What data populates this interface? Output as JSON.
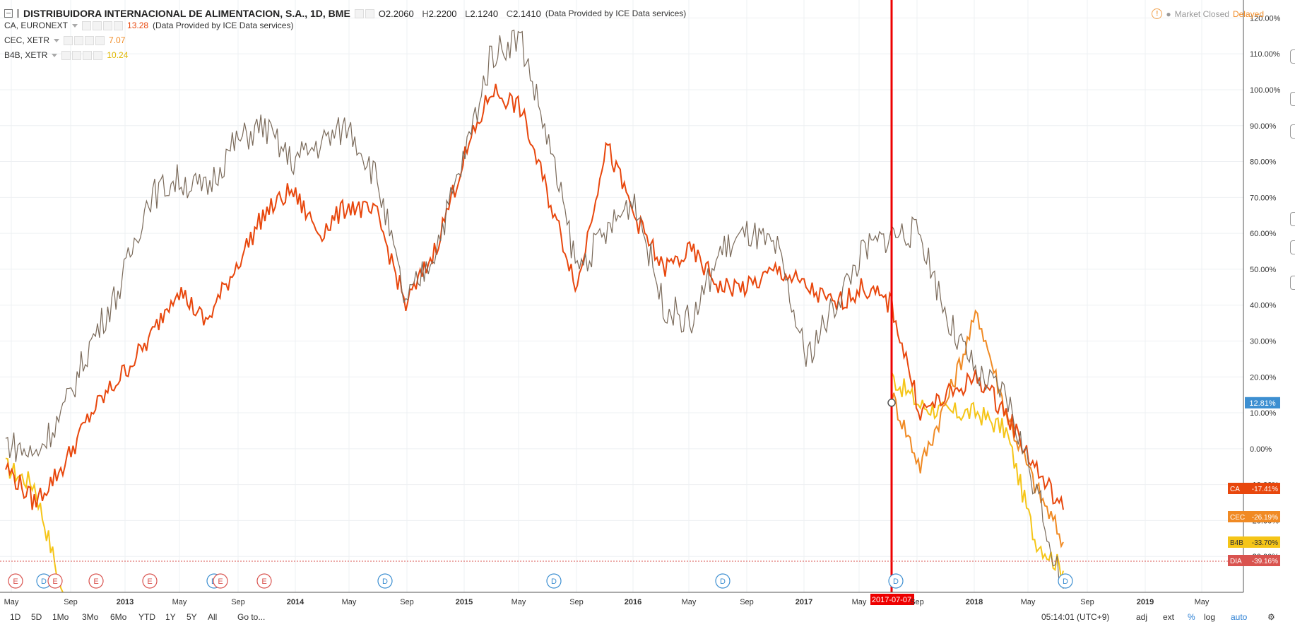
{
  "header": {
    "title": "DISTRIBUIDORA INTERNACIONAL DE ALIMENTACION, S.A., 1D, BME",
    "open_label": "O",
    "open": "2.2060",
    "high_label": "H",
    "high": "2.2200",
    "low_label": "L",
    "low": "2.1240",
    "close_label": "C",
    "close": "2.1410",
    "provider": "(Data Provided by ICE Data services)"
  },
  "compare_legend": [
    {
      "symbol": "CA, EURONEXT",
      "value": "13.28",
      "provider": "(Data Provided by ICE Data services)",
      "color": "#e8470d"
    },
    {
      "symbol": "CEC, XETR",
      "value": "7.07",
      "provider": "",
      "color": "#f08a24"
    },
    {
      "symbol": "B4B, XETR",
      "value": "10.24",
      "provider": "",
      "color": "#f5c518"
    }
  ],
  "status": {
    "market": "Market Closed",
    "delayed": "Delayed"
  },
  "crosshair": {
    "date": "2017-07-07",
    "value": "12.81%"
  },
  "axis_labels": {
    "y": [
      "120.00%",
      "110.00%",
      "100.00%",
      "90.00%",
      "80.00%",
      "70.00%",
      "60.00%",
      "50.00%",
      "40.00%",
      "30.00%",
      "20.00%",
      "10.00%",
      "0.00%",
      "-10.00%",
      "-20.00%",
      "-30.00%"
    ],
    "x": [
      "May",
      "Sep",
      "2013",
      "May",
      "Sep",
      "2014",
      "May",
      "Sep",
      "2015",
      "May",
      "Sep",
      "2016",
      "May",
      "Sep",
      "2017",
      "May",
      "Sep",
      "2018",
      "May",
      "Sep",
      "2019",
      "May"
    ]
  },
  "price_tags": [
    {
      "name": "CA",
      "value": "-17.41%",
      "color": "#e8470d"
    },
    {
      "name": "CEC",
      "value": "-26.19%",
      "color": "#f08a24"
    },
    {
      "name": "B4B",
      "value": "-33.70%",
      "color": "#f5c518"
    },
    {
      "name": "DIA",
      "value": "-39.16%",
      "color": "#d9534f"
    }
  ],
  "event_markers": [
    {
      "letter": "E",
      "color": "#d9534f"
    },
    {
      "letter": "D",
      "color": "#3d8fd1"
    },
    {
      "letter": "E",
      "color": "#d9534f"
    },
    {
      "letter": "E",
      "color": "#d9534f"
    },
    {
      "letter": "E",
      "color": "#d9534f"
    },
    {
      "letter": "D",
      "color": "#3d8fd1"
    },
    {
      "letter": "E",
      "color": "#d9534f"
    },
    {
      "letter": "E",
      "color": "#d9534f"
    },
    {
      "letter": "D",
      "color": "#3d8fd1"
    },
    {
      "letter": "D",
      "color": "#3d8fd1"
    },
    {
      "letter": "D",
      "color": "#3d8fd1"
    },
    {
      "letter": "D",
      "color": "#3d8fd1"
    },
    {
      "letter": "D",
      "color": "#3d8fd1"
    }
  ],
  "bottom_toolbar": {
    "ranges": [
      "1D",
      "5D",
      "1Mo",
      "3Mo",
      "6Mo",
      "YTD",
      "1Y",
      "5Y",
      "All"
    ],
    "goto": "Go to...",
    "time": "05:14:01 (UTC+9)",
    "options": [
      "adj",
      "ext",
      "%",
      "log",
      "auto"
    ]
  },
  "chart_data": {
    "type": "line",
    "title": "DISTRIBUIDORA INTERNACIONAL DE ALIMENTACION, S.A., 1D, BME",
    "xlabel": "",
    "ylabel": "",
    "ylim": [
      -40,
      125
    ],
    "x": [
      "2012-05",
      "2012-07",
      "2012-09",
      "2012-11",
      "2013-01",
      "2013-03",
      "2013-05",
      "2013-07",
      "2013-09",
      "2013-11",
      "2014-01",
      "2014-03",
      "2014-05",
      "2014-07",
      "2014-09",
      "2014-11",
      "2015-01",
      "2015-03",
      "2015-05",
      "2015-07",
      "2015-09",
      "2015-11",
      "2016-01",
      "2016-03",
      "2016-05",
      "2016-07",
      "2016-09",
      "2016-11",
      "2017-01",
      "2017-03",
      "2017-05",
      "2017-07",
      "2017-09",
      "2017-11",
      "2018-01",
      "2018-03",
      "2018-05",
      "2018-07"
    ],
    "series": [
      {
        "name": "DIA",
        "color": "#7a6a5a",
        "values": [
          2,
          -2,
          10,
          30,
          45,
          70,
          75,
          72,
          85,
          90,
          80,
          85,
          90,
          75,
          40,
          55,
          80,
          110,
          115,
          85,
          50,
          60,
          70,
          40,
          35,
          55,
          60,
          55,
          25,
          40,
          55,
          60,
          60,
          35,
          20,
          15,
          -10,
          -39
        ]
      },
      {
        "name": "CA",
        "color": "#e8470d",
        "values": [
          -5,
          -15,
          -5,
          10,
          20,
          30,
          45,
          35,
          50,
          65,
          72,
          60,
          68,
          65,
          40,
          55,
          80,
          100,
          95,
          70,
          45,
          85,
          65,
          50,
          55,
          45,
          45,
          50,
          45,
          40,
          45,
          40,
          10,
          15,
          20,
          10,
          -5,
          -17
        ]
      },
      {
        "name": "CEC",
        "color": "#f08a24",
        "values": [
          null,
          null,
          null,
          null,
          null,
          null,
          null,
          null,
          null,
          null,
          null,
          null,
          null,
          null,
          null,
          null,
          null,
          null,
          null,
          null,
          null,
          null,
          null,
          null,
          null,
          null,
          null,
          null,
          null,
          null,
          null,
          15,
          -5,
          15,
          38,
          10,
          -10,
          -26
        ]
      },
      {
        "name": "B4B",
        "color": "#f5c518",
        "values": [
          -5,
          -10,
          -40,
          null,
          null,
          null,
          null,
          null,
          null,
          null,
          null,
          null,
          null,
          null,
          null,
          null,
          null,
          null,
          null,
          null,
          null,
          null,
          null,
          null,
          null,
          null,
          null,
          null,
          null,
          null,
          null,
          20,
          12,
          10,
          10,
          5,
          -25,
          -34
        ]
      }
    ]
  }
}
